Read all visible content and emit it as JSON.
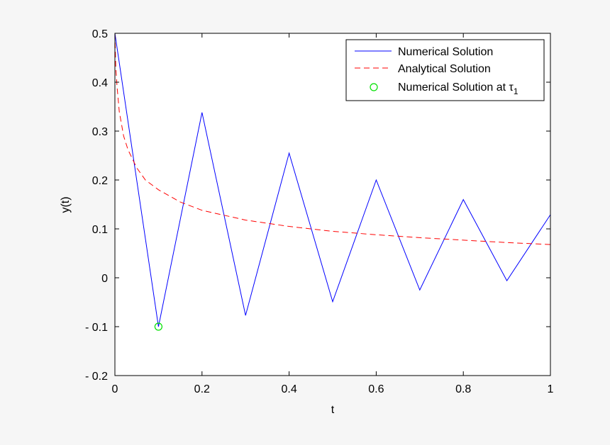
{
  "chart_data": {
    "type": "line",
    "xlabel": "t",
    "ylabel": "y(t)",
    "xlim": [
      0,
      1
    ],
    "ylim": [
      -0.2,
      0.5
    ],
    "xticks": [
      0,
      0.2,
      0.4,
      0.6,
      0.8,
      1
    ],
    "xtick_labels": [
      "0",
      "0.2",
      "0.4",
      "0.6",
      "0.8",
      "1"
    ],
    "yticks": [
      -0.2,
      -0.1,
      0,
      0.1,
      0.2,
      0.3,
      0.4,
      0.5
    ],
    "ytick_labels": [
      "- 0.2",
      "- 0.1",
      "0",
      "0.1",
      "0.2",
      "0.3",
      "0.4",
      "0.5"
    ],
    "grid": false,
    "legend_position": "top-right",
    "series": [
      {
        "name": "Numerical Solution",
        "style": "solid",
        "color": "#0000ff",
        "x": [
          0,
          0.1,
          0.2,
          0.3,
          0.4,
          0.5,
          0.6,
          0.7,
          0.8,
          0.9,
          1.0
        ],
        "y": [
          0.5,
          -0.1,
          0.338,
          -0.077,
          0.255,
          -0.049,
          0.2,
          -0.025,
          0.16,
          -0.006,
          0.129
        ]
      },
      {
        "name": "Analytical Solution",
        "style": "dashed",
        "color": "#ff0000",
        "x": [
          0,
          0.002,
          0.005,
          0.01,
          0.02,
          0.03,
          0.05,
          0.07,
          0.1,
          0.15,
          0.2,
          0.3,
          0.4,
          0.5,
          0.6,
          0.7,
          0.8,
          0.9,
          1.0
        ],
        "y": [
          0.5,
          0.43,
          0.39,
          0.34,
          0.29,
          0.262,
          0.225,
          0.2,
          0.18,
          0.155,
          0.138,
          0.118,
          0.105,
          0.095,
          0.088,
          0.082,
          0.077,
          0.072,
          0.068
        ]
      },
      {
        "name": "Numerical Solution at τ",
        "name_subscript": "1",
        "style": "marker-circle",
        "color": "#00e000",
        "x": [
          0.1
        ],
        "y": [
          -0.1
        ]
      }
    ]
  }
}
